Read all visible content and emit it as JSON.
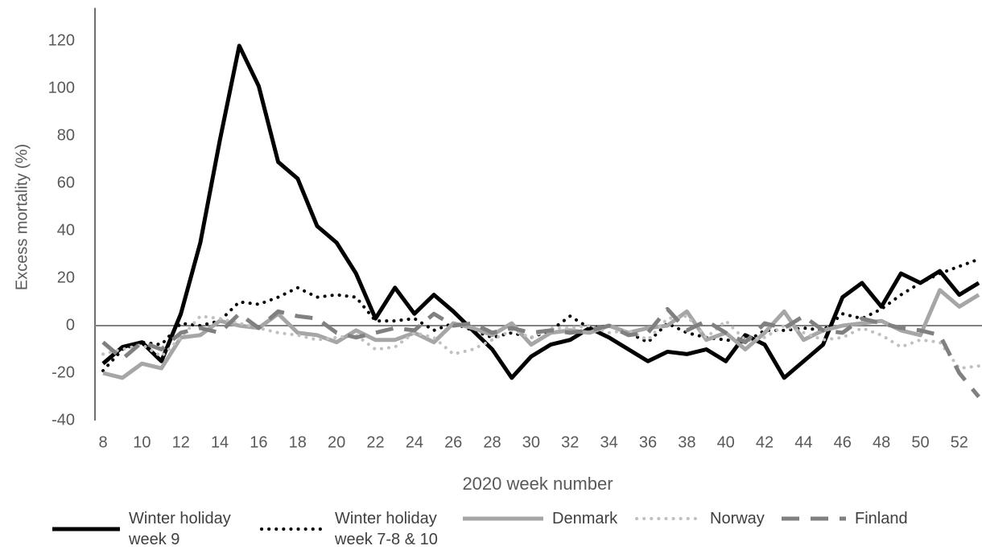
{
  "chart_data": {
    "type": "line",
    "x_label": "2020 week number",
    "y_label": "Excess mortality (%)",
    "x": [
      8,
      9,
      10,
      11,
      12,
      13,
      14,
      15,
      16,
      17,
      18,
      19,
      20,
      21,
      22,
      23,
      24,
      25,
      26,
      27,
      28,
      29,
      30,
      31,
      32,
      33,
      34,
      35,
      36,
      37,
      38,
      39,
      40,
      41,
      42,
      43,
      44,
      45,
      46,
      47,
      48,
      49,
      50,
      51,
      52,
      53
    ],
    "xlim": [
      8,
      53
    ],
    "xticks": [
      8,
      10,
      12,
      14,
      16,
      18,
      20,
      22,
      24,
      26,
      28,
      30,
      32,
      34,
      36,
      38,
      40,
      42,
      44,
      46,
      48,
      50,
      52
    ],
    "ylim": [
      -40,
      134
    ],
    "yticks": [
      -40,
      -20,
      0,
      20,
      40,
      60,
      80,
      100,
      120
    ],
    "grid": false,
    "legend": "bottom",
    "series": [
      {
        "name": "Winter holiday week 9",
        "color": "#000000",
        "style": "solid",
        "values": [
          -16,
          -9,
          -7,
          -15,
          5,
          35,
          78,
          118,
          101,
          69,
          62,
          42,
          35,
          22,
          3,
          16,
          5,
          13,
          6,
          -2,
          -10,
          -22,
          -13,
          -8,
          -6,
          -1,
          -5,
          -10,
          -15,
          -11,
          -12,
          -10,
          -15,
          -4,
          -8,
          -22,
          -15,
          -8,
          12,
          18,
          8,
          22,
          18,
          23,
          13,
          18
        ]
      },
      {
        "name": "Winter holiday week 7-8 & 10",
        "color": "#000000",
        "style": "dotted",
        "values": [
          -19,
          -10,
          -7,
          -8,
          1,
          0,
          2,
          10,
          9,
          12,
          16,
          12,
          13,
          12,
          2,
          2,
          3,
          -2,
          1,
          -2,
          -5,
          -3,
          -5,
          -2,
          4,
          -1,
          0,
          -3,
          -7,
          1,
          -3,
          -5,
          -6,
          -7,
          -2,
          -2,
          -1,
          -2,
          5,
          3,
          7,
          13,
          18,
          22,
          25,
          28
        ]
      },
      {
        "name": "Denmark",
        "color": "#a6a6a6",
        "style": "solid",
        "values": [
          -20,
          -22,
          -16,
          -18,
          -5,
          -4,
          2,
          0,
          -1,
          5,
          -3,
          -4,
          -7,
          -2,
          -6,
          -6,
          -3,
          -7,
          1,
          -1,
          -4,
          1,
          -8,
          -3,
          -2,
          -3,
          0,
          -3,
          -1,
          0,
          6,
          -6,
          -3,
          -10,
          -3,
          6,
          -6,
          -2,
          0,
          1,
          2,
          -2,
          -4,
          15,
          8,
          13
        ]
      },
      {
        "name": "Norway",
        "color": "#c0c0c0",
        "style": "dotted",
        "values": [
          -12,
          -10,
          -8,
          -13,
          -5,
          4,
          3,
          1,
          -1,
          -3,
          -4,
          -6,
          -5,
          -4,
          -10,
          -9,
          -3,
          -5,
          -12,
          -10,
          -6,
          -2,
          -5,
          -1,
          -1,
          0,
          -3,
          -2,
          -6,
          3,
          4,
          -5,
          2,
          -6,
          -5,
          0,
          -3,
          -6,
          -5,
          -1,
          -4,
          -9,
          -6,
          -7,
          -18,
          -17
        ]
      },
      {
        "name": "Finland",
        "color": "#808080",
        "style": "dashed",
        "values": [
          -7,
          -14,
          -7,
          -10,
          -3,
          -1,
          -3,
          5,
          -1,
          6,
          4,
          3,
          -3,
          -5,
          -3,
          -1,
          -2,
          5,
          0,
          1,
          -3,
          -1,
          -3,
          -2,
          -3,
          -2,
          0,
          -4,
          -3,
          7,
          -2,
          2,
          -3,
          -7,
          1,
          -1,
          4,
          -2,
          -3,
          3,
          1,
          -1,
          -2,
          -4,
          -20,
          -30
        ]
      }
    ]
  }
}
